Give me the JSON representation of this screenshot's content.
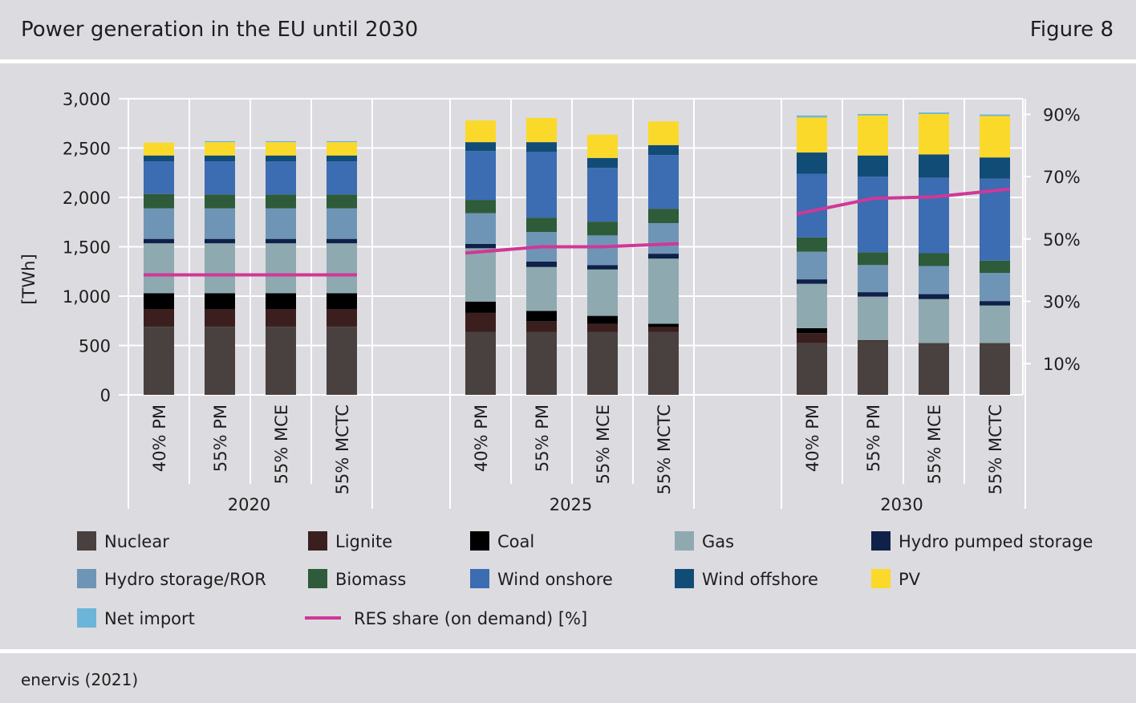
{
  "header": {
    "title": "Power generation in the EU until 2030",
    "figure_label": "Figure 8"
  },
  "footer": {
    "source": "enervis (2021)"
  },
  "chart_data": {
    "type": "bar",
    "stacked": true,
    "ylabel": "[TWh]",
    "ylim": [
      0,
      3000
    ],
    "yticks": [
      0,
      500,
      1000,
      1500,
      2000,
      2500,
      3000
    ],
    "ytick_labels": [
      "0",
      "500",
      "1,000",
      "1,500",
      "2,000",
      "2,500",
      "3,000"
    ],
    "y2lim": [
      0,
      95
    ],
    "y2ticks": [
      10,
      30,
      50,
      70,
      90
    ],
    "y2tick_labels": [
      "10%",
      "30%",
      "50%",
      "70%",
      "90%"
    ],
    "grid": true,
    "legend_position": "bottom",
    "groups": [
      "2020",
      "2025",
      "2030"
    ],
    "categories": [
      "40% PM",
      "55% PM",
      "55% MCE",
      "55% MCTC"
    ],
    "colors": {
      "Nuclear": "#48413f",
      "Lignite": "#3b1f1f",
      "Coal": "#000000",
      "Gas": "#8eaab0",
      "Hydro pumped storage": "#0f2149",
      "Hydro storage/ROR": "#6f95b6",
      "Biomass": "#2e5b39",
      "Wind onshore": "#3c6cb2",
      "Wind offshore": "#114c77",
      "PV": "#fbd92a",
      "Net import": "#6cb5d8",
      "RES share (on demand) [%]": "#cf3896"
    },
    "series": [
      {
        "name": "Nuclear",
        "values": [
          [
            690,
            690,
            690,
            690
          ],
          [
            635,
            635,
            635,
            635
          ],
          [
            525,
            545,
            525,
            525
          ]
        ]
      },
      {
        "name": "Lignite",
        "values": [
          [
            180,
            180,
            180,
            180
          ],
          [
            195,
            110,
            85,
            50
          ],
          [
            100,
            10,
            0,
            0
          ]
        ]
      },
      {
        "name": "Coal",
        "values": [
          [
            160,
            160,
            160,
            160
          ],
          [
            115,
            105,
            80,
            35
          ],
          [
            50,
            0,
            0,
            0
          ]
        ]
      },
      {
        "name": "Gas",
        "values": [
          [
            505,
            505,
            505,
            505
          ],
          [
            540,
            445,
            470,
            660
          ],
          [
            450,
            440,
            445,
            380
          ]
        ]
      },
      {
        "name": "Hydro pumped storage",
        "values": [
          [
            45,
            45,
            45,
            45
          ],
          [
            45,
            55,
            45,
            50
          ],
          [
            45,
            45,
            50,
            45
          ]
        ]
      },
      {
        "name": "Hydro storage/ROR",
        "values": [
          [
            310,
            310,
            310,
            310
          ],
          [
            310,
            300,
            300,
            310
          ],
          [
            280,
            275,
            285,
            285
          ]
        ]
      },
      {
        "name": "Biomass",
        "values": [
          [
            145,
            140,
            140,
            140
          ],
          [
            135,
            145,
            140,
            145
          ],
          [
            145,
            130,
            130,
            125
          ]
        ]
      },
      {
        "name": "Wind onshore",
        "values": [
          [
            330,
            335,
            335,
            335
          ],
          [
            495,
            665,
            545,
            545
          ],
          [
            645,
            765,
            765,
            830
          ]
        ]
      },
      {
        "name": "Wind offshore",
        "values": [
          [
            60,
            60,
            60,
            60
          ],
          [
            90,
            100,
            100,
            100
          ],
          [
            215,
            215,
            235,
            215
          ]
        ]
      },
      {
        "name": "PV",
        "values": [
          [
            130,
            135,
            135,
            135
          ],
          [
            220,
            245,
            235,
            240
          ],
          [
            355,
            405,
            410,
            420
          ]
        ]
      },
      {
        "name": "Net import",
        "values": [
          [
            0,
            10,
            10,
            10
          ],
          [
            0,
            0,
            0,
            0
          ],
          [
            20,
            15,
            15,
            15
          ]
        ]
      }
    ],
    "line": {
      "name": "RES share (on demand) [%]",
      "axis": "right",
      "values": [
        [
          38.5,
          38.5,
          38.5,
          38.5
        ],
        [
          45.5,
          47.5,
          47.5,
          48.5
        ],
        [
          58,
          63,
          63.5,
          66
        ]
      ]
    },
    "legend": [
      "Nuclear",
      "Lignite",
      "Coal",
      "Gas",
      "Hydro pumped storage",
      "Hydro storage/ROR",
      "Biomass",
      "Wind onshore",
      "Wind offshore",
      "PV",
      "Net import",
      "RES share (on demand) [%]"
    ]
  }
}
